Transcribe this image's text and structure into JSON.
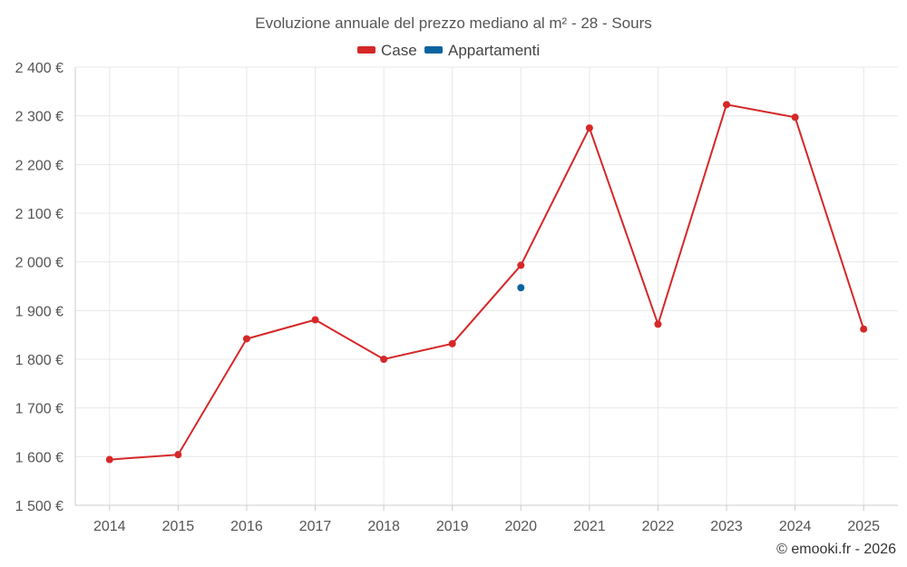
{
  "chart_data": {
    "type": "line",
    "title": "Evoluzione annuale del prezzo mediano al m² - 28 - Sours",
    "categories": [
      "2014",
      "2015",
      "2016",
      "2017",
      "2018",
      "2019",
      "2020",
      "2021",
      "2022",
      "2023",
      "2024",
      "2025"
    ],
    "ylim": [
      1500,
      2400
    ],
    "yticks": [
      1500,
      1600,
      1700,
      1800,
      1900,
      2000,
      2100,
      2200,
      2300,
      2400
    ],
    "ytick_labels": [
      "1 500 €",
      "1 600 €",
      "1 700 €",
      "1 800 €",
      "1 900 €",
      "2 000 €",
      "2 100 €",
      "2 200 €",
      "2 300 €",
      "2 400 €"
    ],
    "grid": true,
    "legend_position": "top-center",
    "series": [
      {
        "name": "Case",
        "color": "#d62728",
        "values": [
          1594,
          1604,
          1842,
          1881,
          1800,
          1832,
          1993,
          2275,
          1872,
          2323,
          2297,
          1862
        ]
      },
      {
        "name": "Appartamenti",
        "color": "#0b64a0",
        "values": [
          null,
          null,
          null,
          null,
          null,
          null,
          1947,
          null,
          null,
          null,
          null,
          null
        ]
      }
    ]
  },
  "credit": "© emooki.fr - 2026"
}
